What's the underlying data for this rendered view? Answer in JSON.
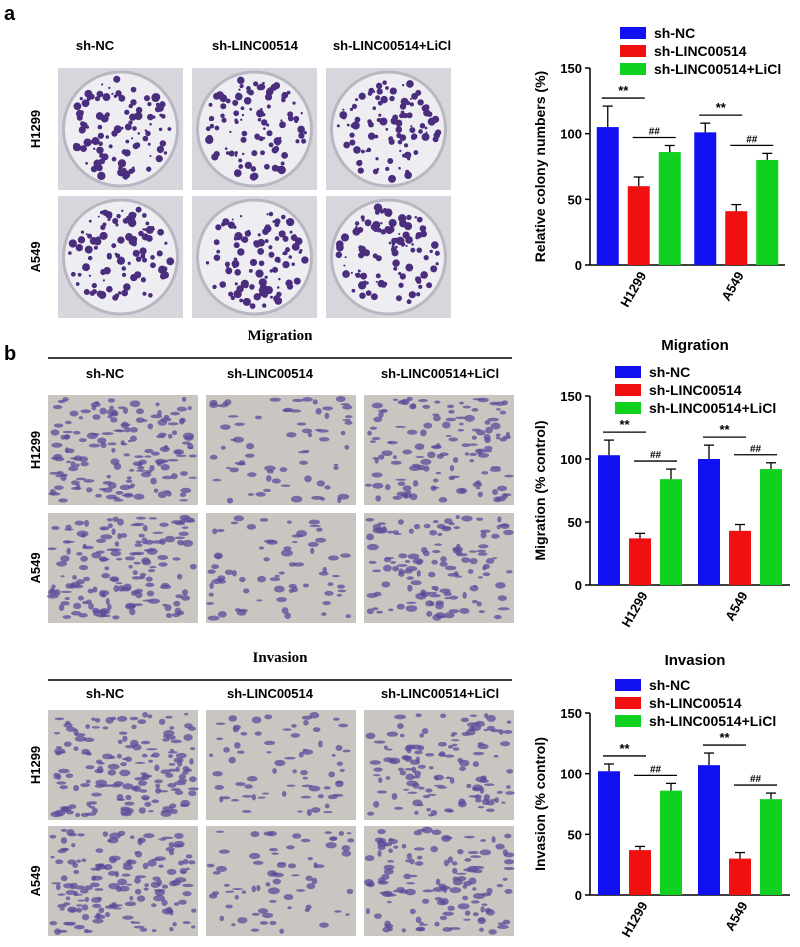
{
  "panels": [
    {
      "label": "a",
      "columns": [
        "sh-NC",
        "sh-LINC00514",
        "sh-LINC00514+LiCl"
      ],
      "rows": [
        "H1299",
        "A549"
      ]
    },
    {
      "label": "b",
      "sections": [
        {
          "title": "Migration",
          "columns": [
            "sh-NC",
            "sh-LINC00514",
            "sh-LINC00514+LiCl"
          ],
          "rows": [
            "H1299",
            "A549"
          ]
        },
        {
          "title": "Invasion",
          "columns": [
            "sh-NC",
            "sh-LINC00514",
            "sh-LINC00514+LiCl"
          ],
          "rows": [
            "H1299",
            "A549"
          ]
        }
      ]
    }
  ],
  "chart_data": [
    {
      "type": "bar",
      "y_label": "Relative colony numbers (%)",
      "categories": [
        "H1299",
        "A549"
      ],
      "series": [
        {
          "name": "sh-NC",
          "color": "#1010f0",
          "values": [
            105,
            101
          ],
          "errors": [
            16,
            7
          ]
        },
        {
          "name": "sh-LINC00514",
          "color": "#f01010",
          "values": [
            60,
            41
          ],
          "errors": [
            7,
            5
          ]
        },
        {
          "name": "sh-LINC00514+LiCl",
          "color": "#10d020",
          "values": [
            86,
            80
          ],
          "errors": [
            5,
            5
          ]
        }
      ],
      "significance": [
        [
          "**",
          "##"
        ],
        [
          "**",
          "##"
        ]
      ],
      "ylim": [
        0,
        150
      ],
      "yticks": [
        0,
        50,
        100,
        150
      ]
    },
    {
      "type": "bar",
      "title": "Migration",
      "y_label": "Migration (% control)",
      "categories": [
        "H1299",
        "A549"
      ],
      "series": [
        {
          "name": "sh-NC",
          "color": "#1010f0",
          "values": [
            103,
            100
          ],
          "errors": [
            12,
            11
          ]
        },
        {
          "name": "sh-LINC00514",
          "color": "#f01010",
          "values": [
            37,
            43
          ],
          "errors": [
            4,
            5
          ]
        },
        {
          "name": "sh-LINC00514+LiCl",
          "color": "#10d020",
          "values": [
            84,
            92
          ],
          "errors": [
            8,
            5
          ]
        }
      ],
      "significance": [
        [
          "**",
          "##"
        ],
        [
          "**",
          "##"
        ]
      ],
      "ylim": [
        0,
        150
      ],
      "yticks": [
        0,
        50,
        100,
        150
      ]
    },
    {
      "type": "bar",
      "title": "Invasion",
      "y_label": "Invasion (% control)",
      "categories": [
        "H1299",
        "A549"
      ],
      "series": [
        {
          "name": "sh-NC",
          "color": "#1010f0",
          "values": [
            102,
            107
          ],
          "errors": [
            6,
            10
          ]
        },
        {
          "name": "sh-LINC00514",
          "color": "#f01010",
          "values": [
            37,
            30
          ],
          "errors": [
            3,
            5
          ]
        },
        {
          "name": "sh-LINC00514+LiCl",
          "color": "#10d020",
          "values": [
            86,
            79
          ],
          "errors": [
            6,
            5
          ]
        }
      ],
      "significance": [
        [
          "**",
          "##"
        ],
        [
          "**",
          "##"
        ]
      ],
      "ylim": [
        0,
        150
      ],
      "yticks": [
        0,
        50,
        100,
        150
      ]
    }
  ]
}
